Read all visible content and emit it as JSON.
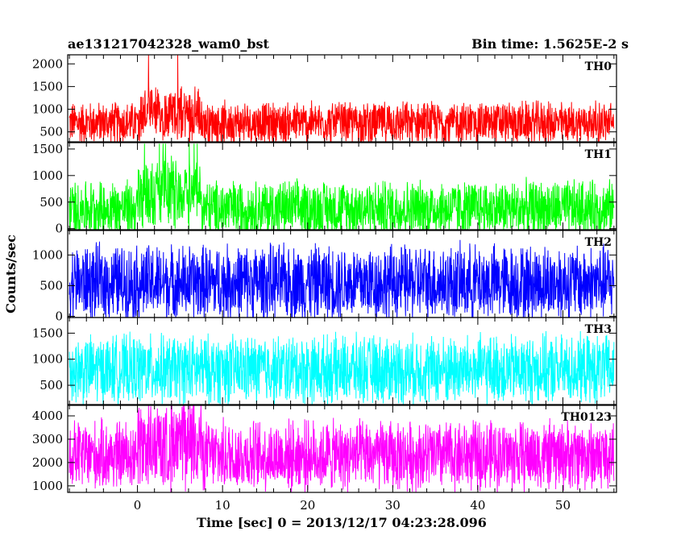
{
  "header": {
    "left_title": "ae131217042328_wam0_bst",
    "right_title": "Bin time: 1.5625E-2 s"
  },
  "axes": {
    "xlabel": "Time [sec] 0 = 2013/12/17 04:23:28.096",
    "ylabel": "Counts/sec"
  },
  "chart_data": [
    {
      "type": "line",
      "name": "TH0",
      "color": "#ff0000",
      "xlim": [
        -8.2,
        56.3
      ],
      "ylim": [
        280,
        2200
      ],
      "yticks": [
        500,
        1000,
        1500,
        2000
      ],
      "baseline_mean": 700,
      "noise_range": [
        350,
        1400
      ],
      "burst": {
        "start": 0,
        "end": 7.5,
        "mean": 900,
        "peak": 2200
      }
    },
    {
      "type": "line",
      "name": "TH1",
      "color": "#00ff00",
      "xlim": [
        -8.2,
        56.3
      ],
      "ylim": [
        -20,
        1620
      ],
      "yticks": [
        0,
        500,
        1000,
        1500
      ],
      "baseline_mean": 380,
      "noise_range": [
        0,
        1200
      ],
      "burst": {
        "start": 0,
        "end": 7.5,
        "mean": 700,
        "peak": 1600
      }
    },
    {
      "type": "line",
      "name": "TH2",
      "color": "#0000ff",
      "xlim": [
        -8.2,
        56.3
      ],
      "ylim": [
        -20,
        1400
      ],
      "yticks": [
        0,
        500,
        1000
      ],
      "baseline_mean": 550,
      "noise_range": [
        0,
        1400
      ],
      "burst": null
    },
    {
      "type": "line",
      "name": "TH3",
      "color": "#00ffff",
      "xlim": [
        -8.2,
        56.3
      ],
      "ylim": [
        130,
        1800
      ],
      "yticks": [
        500,
        1000,
        1500
      ],
      "baseline_mean": 800,
      "noise_range": [
        250,
        1750
      ],
      "burst": null
    },
    {
      "type": "line",
      "name": "TH0123",
      "color": "#ff00ff",
      "xlim": [
        -8.2,
        56.3
      ],
      "ylim": [
        720,
        4450
      ],
      "yticks": [
        1000,
        2000,
        3000,
        4000
      ],
      "baseline_mean": 2300,
      "noise_range": [
        800,
        4200
      ],
      "burst": {
        "start": 0,
        "end": 7.5,
        "mean": 2700,
        "peak": 4450
      }
    }
  ],
  "xaxis": {
    "xlim": [
      -8.2,
      56.3
    ],
    "ticks": [
      0,
      10,
      20,
      30,
      40,
      50
    ],
    "minor_step": 2,
    "data_start": -8,
    "data_end": 56
  }
}
